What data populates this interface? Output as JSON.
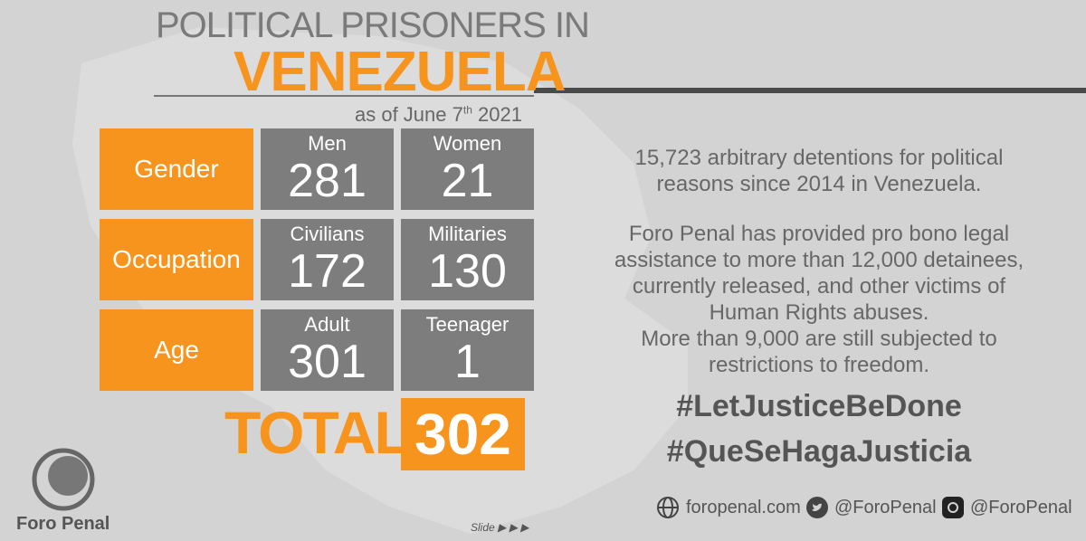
{
  "header": {
    "title_line1": "POLITICAL PRISONERS IN",
    "title_line2": "VENEZUELA",
    "date": {
      "prefix": "as of June 7",
      "suffix": "th",
      "year": "2021"
    }
  },
  "table": {
    "rows": [
      {
        "label": "Gender",
        "cells": [
          {
            "label": "Men",
            "value": 281
          },
          {
            "label": "Women",
            "value": 21
          }
        ]
      },
      {
        "label": "Occupation",
        "cells": [
          {
            "label": "Civilians",
            "value": 172
          },
          {
            "label": "Militaries",
            "value": 130
          }
        ]
      },
      {
        "label": "Age",
        "cells": [
          {
            "label": "Adult",
            "value": 301
          },
          {
            "label": "Teenager",
            "value": 1
          }
        ]
      }
    ],
    "total_label": "TOTAL",
    "total_value": 302
  },
  "text": {
    "paragraph1": [
      "15,723 arbitrary detentions for political",
      "reasons since 2014 in Venezuela."
    ],
    "paragraph2": [
      "Foro Penal has provided pro bono legal",
      "assistance to more than 12,000 detainees,",
      "currently released, and other victims of",
      "Human Rights abuses.",
      "More than 9,000 are still subjected to",
      "restrictions to freedom."
    ],
    "hashtags": [
      "#LetJusticeBeDone",
      "#QueSeHagaJusticia"
    ]
  },
  "footer": {
    "website": "foropenal.com",
    "twitter": "@ForoPenal",
    "instagram": "@ForoPenal",
    "brand": "Foro Penal",
    "slide": "Slide"
  }
}
